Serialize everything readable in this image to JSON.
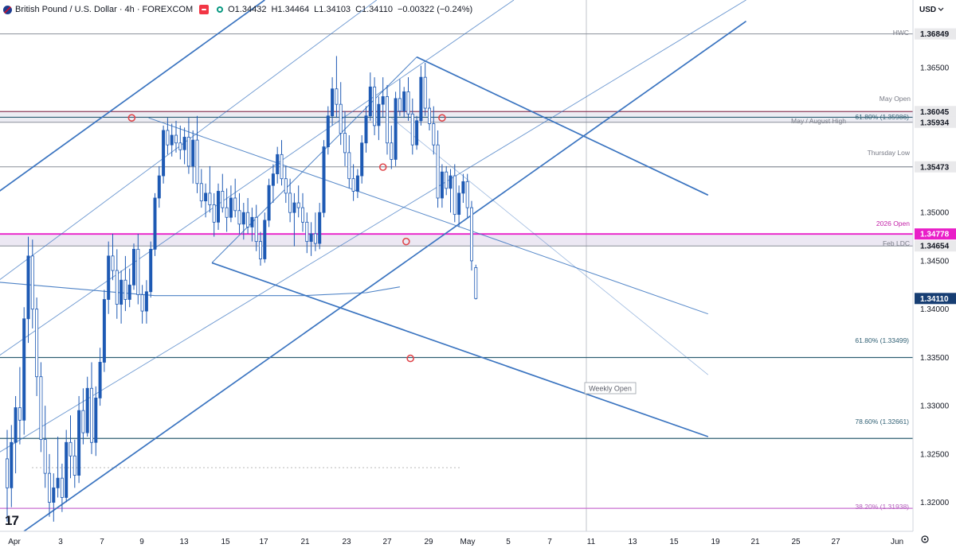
{
  "header": {
    "title": "British Pound / U.S. Dollar · 4h · FOREXCOM",
    "ohlc": [
      "O1.34432",
      "H1.34464",
      "L1.34103",
      "C1.34110"
    ],
    "change": "−0.00322 (−0.24%)"
  },
  "currency_label": "USD",
  "logo_text": "17",
  "colors": {
    "candle": "#1e5ab4",
    "channel": "#3a74c0",
    "level": "#2f5f73",
    "highlight": "#e91ec8",
    "fib_low": "#c86fd0",
    "marker": "#e0474c",
    "last_price_bg": "#173e73"
  },
  "chart_data": {
    "type": "candlestick",
    "title": "British Pound / U.S. Dollar · 4h · FOREXCOM",
    "y_range": [
      1.317,
      1.372
    ],
    "x_axis_ticks": [
      "Apr",
      "3",
      "7",
      "9",
      "13",
      "15",
      "17",
      "21",
      "23",
      "27",
      "29",
      "May",
      "5",
      "7",
      "11",
      "13",
      "15",
      "19",
      "21",
      "25",
      "27",
      "Jun"
    ],
    "y_axis_ticks": [
      "1.36500",
      "1.35000",
      "1.34500",
      "1.34000",
      "1.33500",
      "1.33000",
      "1.32500",
      "1.32000"
    ],
    "price_badges": [
      {
        "label": "1.36849",
        "value": 1.36849,
        "style": "gray"
      },
      {
        "label": "1.36045",
        "value": 1.36045,
        "style": "gray"
      },
      {
        "label": "1.35934",
        "value": 1.35934,
        "style": "gray"
      },
      {
        "label": "1.35473",
        "value": 1.35473,
        "style": "gray"
      },
      {
        "label": "1.34778",
        "value": 1.34778,
        "style": "magenta"
      },
      {
        "label": "1.34654",
        "value": 1.34654,
        "style": "gray"
      },
      {
        "label": "1.34110",
        "value": 1.3411,
        "style": "last"
      }
    ],
    "levels": [
      {
        "name": "HWC",
        "label": "HWC",
        "value": 1.36849,
        "style": "gray"
      },
      {
        "name": "may-open",
        "label": "May Open",
        "value": 1.36045,
        "style": "maroon"
      },
      {
        "name": "fib-618-upper",
        "label": "61.80% (1.35986)",
        "value": 1.35986,
        "style": "teal"
      },
      {
        "name": "may-august-high",
        "label": "May / August High",
        "value": 1.35934,
        "style": "gray"
      },
      {
        "name": "thursday-low",
        "label": "Thursday Low",
        "value": 1.35473,
        "style": "gray"
      },
      {
        "name": "2026-open",
        "label": "2026 Open",
        "value": 1.34778,
        "style": "magenta"
      },
      {
        "name": "feb-ldc",
        "label": "Feb LDC",
        "value": 1.34654,
        "style": "gray"
      },
      {
        "name": "fib-618-lower",
        "label": "61.80% (1.33499)",
        "value": 1.33499,
        "style": "teal"
      },
      {
        "name": "fib-786",
        "label": "78.60% (1.32661)",
        "value": 1.32661,
        "style": "teal"
      },
      {
        "name": "fib-382",
        "label": "38.20% (1.31938)",
        "value": 1.31938,
        "style": "pink"
      }
    ],
    "weekly_open_label": "Weekly Open",
    "ohlc_last": {
      "open": 1.34432,
      "high": 1.34464,
      "low": 1.34103,
      "close": 1.3411
    },
    "trend_lines": [
      {
        "name": "ascending-channel-lower",
        "points": [
          [
            -0.5,
            1.315
          ],
          [
            35.0,
            1.3698
          ]
        ]
      },
      {
        "name": "ascending-channel-upper",
        "points": [
          [
            -0.5,
            1.352
          ],
          [
            12.2,
            1.372
          ]
        ]
      },
      {
        "name": "ascending-channel-mid",
        "points": [
          [
            -0.5,
            1.335
          ],
          [
            24.0,
            1.372
          ]
        ]
      },
      {
        "name": "ascending-channel-quarter",
        "points": [
          [
            -0.5,
            1.3428
          ],
          [
            17.5,
            1.372
          ]
        ]
      },
      {
        "name": "ascending-channel-low-mid",
        "points": [
          [
            -0.5,
            1.325
          ],
          [
            35.0,
            1.372
          ]
        ]
      },
      {
        "name": "descending-pitchfork-upper",
        "points": [
          [
            19.4,
            1.3661
          ],
          [
            33.2,
            1.3518
          ]
        ]
      },
      {
        "name": "descending-pitchfork-lower",
        "points": [
          [
            9.7,
            1.3448
          ],
          [
            33.2,
            1.3268
          ]
        ]
      },
      {
        "name": "descending-parallel-mid",
        "points": [
          [
            6.7,
            1.3598
          ],
          [
            33.2,
            1.3395
          ]
        ]
      },
      {
        "name": "descending-parallel-lower",
        "points": [
          [
            18.2,
            1.3598
          ],
          [
            33.2,
            1.3332
          ]
        ]
      },
      {
        "name": "pitchfork-handle",
        "points": [
          [
            9.7,
            1.3448
          ],
          [
            19.4,
            1.3661
          ]
        ]
      },
      {
        "name": "moving-average",
        "points": [
          [
            -0.5,
            1.3428
          ],
          [
            7.0,
            1.3414
          ],
          [
            14.0,
            1.3414
          ],
          [
            17.0,
            1.3417
          ],
          [
            18.6,
            1.3423
          ]
        ]
      }
    ],
    "markers": [
      {
        "x": 5.9,
        "y": 1.3598
      },
      {
        "x": 20.6,
        "y": 1.3598
      },
      {
        "x": 17.8,
        "y": 1.3547
      },
      {
        "x": 18.9,
        "y": 1.347
      },
      {
        "x": 19.1,
        "y": 1.3349
      }
    ],
    "candles": [
      [
        0.0,
        1.3245,
        1.3275,
        1.318,
        1.3215
      ],
      [
        0.2,
        1.3215,
        1.328,
        1.3195,
        1.3262
      ],
      [
        0.4,
        1.3262,
        1.331,
        1.323,
        1.3298
      ],
      [
        0.6,
        1.3298,
        1.334,
        1.326,
        1.3285
      ],
      [
        0.8,
        1.3285,
        1.3402,
        1.327,
        1.339
      ],
      [
        1.0,
        1.339,
        1.3475,
        1.3365,
        1.3455
      ],
      [
        1.2,
        1.3455,
        1.3472,
        1.338,
        1.34
      ],
      [
        1.4,
        1.34,
        1.3412,
        1.331,
        1.333
      ],
      [
        1.6,
        1.333,
        1.3345,
        1.3252,
        1.3265
      ],
      [
        1.8,
        1.3265,
        1.33,
        1.3215,
        1.323
      ],
      [
        2.0,
        1.323,
        1.325,
        1.3185,
        1.32
      ],
      [
        2.2,
        1.32,
        1.323,
        1.318,
        1.3215
      ],
      [
        2.4,
        1.3215,
        1.3268,
        1.3205,
        1.3225
      ],
      [
        2.6,
        1.3225,
        1.324,
        1.319,
        1.3205
      ],
      [
        2.8,
        1.3205,
        1.3275,
        1.32,
        1.3262
      ],
      [
        3.0,
        1.3262,
        1.329,
        1.3225,
        1.3248
      ],
      [
        3.2,
        1.3248,
        1.3265,
        1.3215,
        1.3228
      ],
      [
        3.4,
        1.3228,
        1.331,
        1.322,
        1.3295
      ],
      [
        3.6,
        1.3295,
        1.3318,
        1.326,
        1.3272
      ],
      [
        3.8,
        1.3272,
        1.333,
        1.3268,
        1.3318
      ],
      [
        4.0,
        1.3318,
        1.3345,
        1.325,
        1.3262
      ],
      [
        4.2,
        1.3262,
        1.332,
        1.3248,
        1.3308
      ],
      [
        4.4,
        1.3308,
        1.336,
        1.33,
        1.3345
      ],
      [
        4.6,
        1.3345,
        1.342,
        1.3335,
        1.341
      ],
      [
        4.8,
        1.341,
        1.347,
        1.3395,
        1.3455
      ],
      [
        5.0,
        1.3455,
        1.3478,
        1.343,
        1.344
      ],
      [
        5.2,
        1.344,
        1.3462,
        1.339,
        1.3405
      ],
      [
        5.4,
        1.3405,
        1.344,
        1.3385,
        1.343
      ],
      [
        5.6,
        1.343,
        1.3455,
        1.3398,
        1.341
      ],
      [
        5.8,
        1.341,
        1.3442,
        1.3402,
        1.3425
      ],
      [
        6.0,
        1.3425,
        1.3468,
        1.342,
        1.3462
      ],
      [
        6.2,
        1.3462,
        1.3478,
        1.3405,
        1.3415
      ],
      [
        6.4,
        1.3415,
        1.3425,
        1.3385,
        1.3398
      ],
      [
        6.6,
        1.3398,
        1.343,
        1.3385,
        1.3418
      ],
      [
        6.8,
        1.3418,
        1.347,
        1.3412,
        1.3462
      ],
      [
        7.0,
        1.3462,
        1.352,
        1.3455,
        1.3515
      ],
      [
        7.2,
        1.3515,
        1.3548,
        1.3505,
        1.3538
      ],
      [
        7.4,
        1.3538,
        1.359,
        1.353,
        1.3585
      ],
      [
        7.6,
        1.3585,
        1.3598,
        1.356,
        1.357
      ],
      [
        7.8,
        1.357,
        1.3592,
        1.3558,
        1.358
      ],
      [
        8.0,
        1.358,
        1.3595,
        1.3562,
        1.3572
      ],
      [
        8.2,
        1.3572,
        1.359,
        1.3555,
        1.3565
      ],
      [
        8.4,
        1.3565,
        1.3588,
        1.355,
        1.3578
      ],
      [
        8.6,
        1.3578,
        1.3598,
        1.354,
        1.3548
      ],
      [
        8.8,
        1.3548,
        1.3585,
        1.353,
        1.3575
      ],
      [
        9.0,
        1.3575,
        1.36,
        1.352,
        1.353
      ],
      [
        9.2,
        1.353,
        1.3545,
        1.3505,
        1.3512
      ],
      [
        9.4,
        1.3512,
        1.353,
        1.3495,
        1.352
      ],
      [
        9.6,
        1.352,
        1.3548,
        1.35,
        1.3508
      ],
      [
        9.8,
        1.3508,
        1.352,
        1.3475,
        1.349
      ],
      [
        10.0,
        1.349,
        1.353,
        1.3482,
        1.3522
      ],
      [
        10.2,
        1.3522,
        1.354,
        1.35,
        1.3505
      ],
      [
        10.4,
        1.3505,
        1.3525,
        1.348,
        1.3495
      ],
      [
        10.6,
        1.3495,
        1.3528,
        1.349,
        1.3515
      ],
      [
        10.8,
        1.3515,
        1.3535,
        1.3495,
        1.3502
      ],
      [
        11.0,
        1.3502,
        1.352,
        1.3478,
        1.3488
      ],
      [
        11.2,
        1.3488,
        1.351,
        1.3472,
        1.35
      ],
      [
        11.4,
        1.35,
        1.3515,
        1.3478,
        1.3485
      ],
      [
        11.6,
        1.3485,
        1.3505,
        1.347,
        1.3495
      ],
      [
        11.8,
        1.3495,
        1.3508,
        1.346,
        1.347
      ],
      [
        12.0,
        1.347,
        1.348,
        1.3445,
        1.3452
      ],
      [
        12.2,
        1.3452,
        1.35,
        1.3448,
        1.3492
      ],
      [
        12.4,
        1.3492,
        1.3535,
        1.3485,
        1.3528
      ],
      [
        12.6,
        1.3528,
        1.355,
        1.351,
        1.354
      ],
      [
        12.8,
        1.354,
        1.3568,
        1.353,
        1.356
      ],
      [
        13.0,
        1.356,
        1.3575,
        1.3528,
        1.3535
      ],
      [
        13.2,
        1.3535,
        1.3548,
        1.351,
        1.352
      ],
      [
        13.4,
        1.352,
        1.3535,
        1.349,
        1.35
      ],
      [
        13.6,
        1.35,
        1.352,
        1.3465,
        1.351
      ],
      [
        13.8,
        1.351,
        1.3528,
        1.3495,
        1.3505
      ],
      [
        14.0,
        1.3505,
        1.352,
        1.348,
        1.349
      ],
      [
        14.2,
        1.349,
        1.35,
        1.3458,
        1.347
      ],
      [
        14.4,
        1.347,
        1.349,
        1.3455,
        1.3478
      ],
      [
        14.6,
        1.3478,
        1.35,
        1.346,
        1.3468
      ],
      [
        14.8,
        1.3468,
        1.351,
        1.3462,
        1.35
      ],
      [
        15.0,
        1.35,
        1.3575,
        1.3495,
        1.3568
      ],
      [
        15.2,
        1.3568,
        1.361,
        1.356,
        1.36
      ],
      [
        15.4,
        1.36,
        1.364,
        1.359,
        1.3628
      ],
      [
        15.6,
        1.3628,
        1.3662,
        1.3598,
        1.3612
      ],
      [
        15.8,
        1.3612,
        1.3635,
        1.357,
        1.3582
      ],
      [
        16.0,
        1.3582,
        1.3605,
        1.3548,
        1.3562
      ],
      [
        16.2,
        1.3562,
        1.358,
        1.3525,
        1.3535
      ],
      [
        16.4,
        1.3535,
        1.355,
        1.3512,
        1.3522
      ],
      [
        16.6,
        1.3522,
        1.3545,
        1.3515,
        1.3538
      ],
      [
        16.8,
        1.3538,
        1.358,
        1.353,
        1.3572
      ],
      [
        17.0,
        1.3572,
        1.361,
        1.3562,
        1.36
      ],
      [
        17.2,
        1.36,
        1.3645,
        1.3595,
        1.363
      ],
      [
        17.4,
        1.363,
        1.364,
        1.358,
        1.359
      ],
      [
        17.6,
        1.359,
        1.362,
        1.3575,
        1.3612
      ],
      [
        17.8,
        1.3612,
        1.364,
        1.3598,
        1.362
      ],
      [
        18.0,
        1.362,
        1.3632,
        1.356,
        1.3572
      ],
      [
        18.2,
        1.3572,
        1.359,
        1.3545,
        1.3555
      ],
      [
        18.4,
        1.3555,
        1.3625,
        1.3548,
        1.3618
      ],
      [
        18.6,
        1.3618,
        1.3638,
        1.36,
        1.3605
      ],
      [
        18.8,
        1.3605,
        1.363,
        1.3598,
        1.3625
      ],
      [
        19.0,
        1.3625,
        1.364,
        1.3595,
        1.3602
      ],
      [
        19.2,
        1.3602,
        1.3618,
        1.356,
        1.357
      ],
      [
        19.4,
        1.357,
        1.36,
        1.3565,
        1.3595
      ],
      [
        19.6,
        1.3595,
        1.3652,
        1.359,
        1.364
      ],
      [
        19.8,
        1.364,
        1.3655,
        1.36,
        1.3608
      ],
      [
        20.0,
        1.3608,
        1.3618,
        1.3585,
        1.3592
      ],
      [
        20.2,
        1.3592,
        1.361,
        1.356,
        1.357
      ],
      [
        20.4,
        1.357,
        1.3585,
        1.3505,
        1.3515
      ],
      [
        20.6,
        1.3515,
        1.355,
        1.3505,
        1.3542
      ],
      [
        20.8,
        1.3542,
        1.3548,
        1.3518,
        1.3525
      ],
      [
        21.0,
        1.3525,
        1.3545,
        1.35,
        1.3538
      ],
      [
        21.2,
        1.3538,
        1.355,
        1.349,
        1.3498
      ],
      [
        21.4,
        1.3498,
        1.3528,
        1.3485,
        1.352
      ],
      [
        21.6,
        1.352,
        1.354,
        1.351,
        1.3532
      ],
      [
        21.8,
        1.3532,
        1.354,
        1.3495,
        1.3505
      ],
      [
        22.0,
        1.3505,
        1.3512,
        1.344,
        1.345
      ],
      [
        22.2,
        1.3443,
        1.3446,
        1.341,
        1.3411
      ]
    ]
  }
}
